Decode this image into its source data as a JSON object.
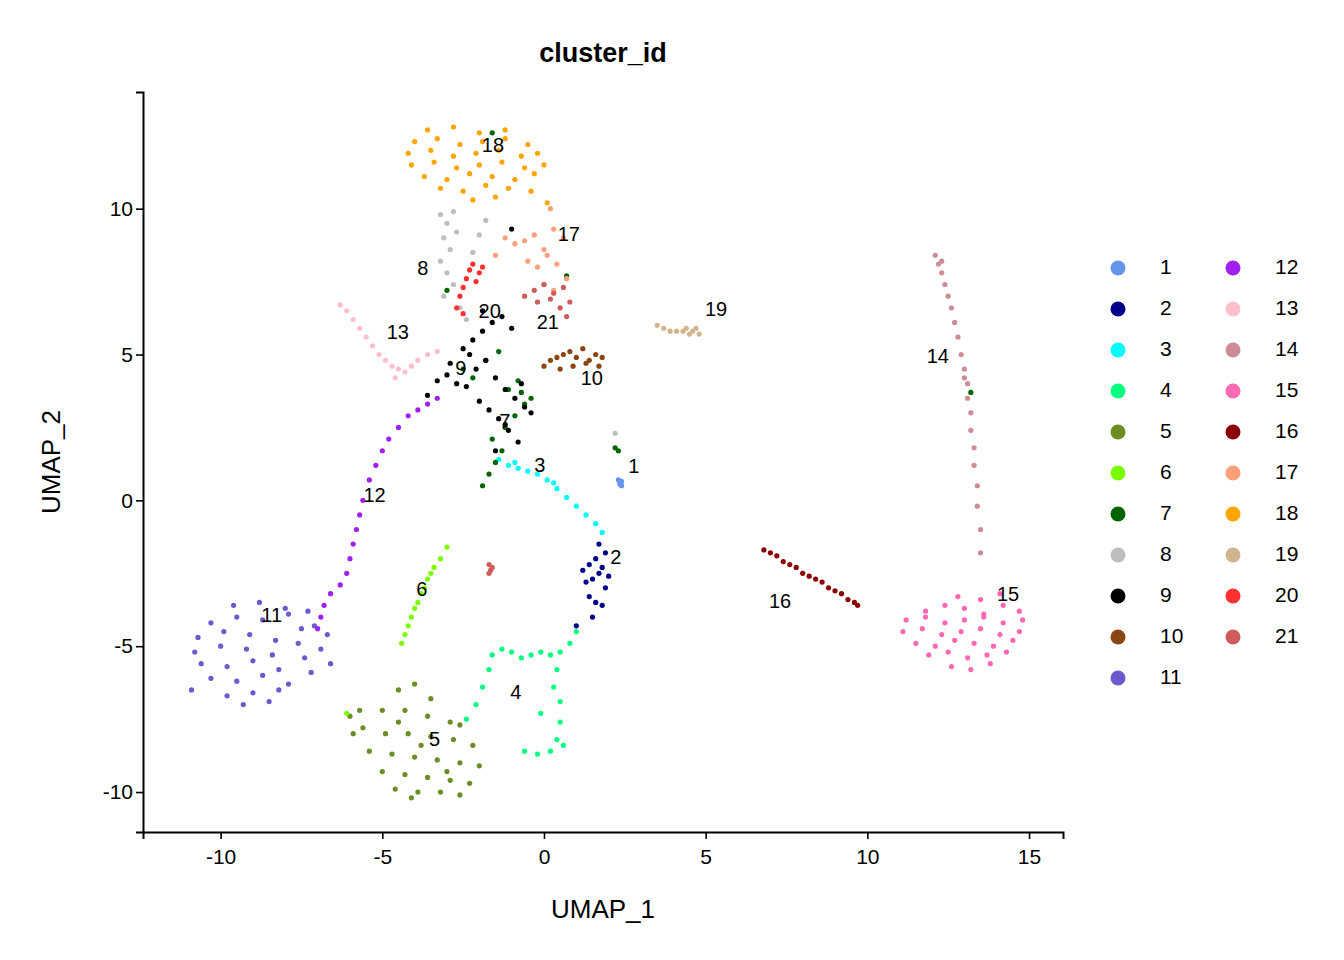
{
  "chart_data": {
    "type": "scatter",
    "title": "cluster_id",
    "x_label": "UMAP_1",
    "y_label": "UMAP_2",
    "xlim": [
      -12.4,
      16.05
    ],
    "ylim": [
      -11.37,
      14.0
    ],
    "xticks": [
      -10,
      -5,
      0,
      5,
      10,
      15
    ],
    "yticks": [
      -10,
      -5,
      0,
      5,
      10
    ],
    "grid": false,
    "legend": "right",
    "marker": "circle",
    "series": [
      {
        "name": "1",
        "color": "#6495ED",
        "x": [
          2.35,
          2.4,
          2.3,
          2.35,
          2.4
        ],
        "values": [
          0.6,
          0.5,
          0.7,
          0.55,
          0.65
        ]
      },
      {
        "name": "2",
        "color": "#00008B",
        "x": [
          1.2,
          1.4,
          1.6,
          1.8,
          2.0,
          1.3,
          1.5,
          1.7,
          1.9,
          1.4,
          1.6,
          1.8,
          1.7,
          1.9,
          1.5,
          1.0
        ],
        "values": [
          -2.4,
          -2.2,
          -2.0,
          -2.3,
          -2.6,
          -2.8,
          -2.7,
          -2.5,
          -3.0,
          -3.3,
          -3.5,
          -3.6,
          -1.5,
          -1.8,
          -4.0,
          -4.3
        ]
      },
      {
        "name": "3",
        "color": "#00FFFF",
        "x": [
          -1.4,
          -1.1,
          -0.8,
          -0.5,
          -0.2,
          0.1,
          0.4,
          0.7,
          1.0,
          1.3,
          1.6,
          1.8,
          -0.9,
          0.3
        ],
        "values": [
          1.4,
          1.2,
          1.1,
          1.0,
          0.9,
          0.7,
          0.4,
          0.1,
          -0.2,
          -0.5,
          -0.8,
          -1.1,
          1.3,
          0.6
        ]
      },
      {
        "name": "4",
        "color": "#00FF7F",
        "x": [
          1.0,
          0.8,
          0.5,
          0.2,
          -0.1,
          -0.4,
          -0.7,
          -1.0,
          -1.3,
          -1.6,
          -1.7,
          -1.9,
          -2.1,
          -2.4,
          0.4,
          0.3,
          0.5,
          0.5,
          0.4,
          0.2,
          -0.2,
          -0.6,
          -0.1,
          0.6
        ],
        "values": [
          -4.5,
          -4.9,
          -5.2,
          -5.3,
          -5.2,
          -5.3,
          -5.4,
          -5.2,
          -5.1,
          -5.3,
          -5.8,
          -6.4,
          -7.0,
          -7.5,
          -5.8,
          -6.4,
          -6.9,
          -7.6,
          -8.2,
          -8.6,
          -8.7,
          -8.6,
          -7.3,
          -8.4
        ]
      },
      {
        "name": "5",
        "color": "#6B8E23",
        "x": [
          -4.5,
          -4.0,
          -3.5,
          -5.0,
          -4.3,
          -3.6,
          -2.9,
          -5.6,
          -4.9,
          -4.2,
          -3.5,
          -2.8,
          -2.2,
          -5.4,
          -4.7,
          -4.0,
          -3.3,
          -2.6,
          -2.0,
          -5.0,
          -4.3,
          -3.6,
          -2.9,
          -2.3,
          -4.6,
          -3.9,
          -3.2,
          -2.6,
          -5.7,
          -5.9,
          -3.8,
          -4.5,
          -3.0,
          -4.1,
          -6.0,
          -2.6
        ],
        "values": [
          -6.5,
          -6.3,
          -6.8,
          -7.2,
          -7.2,
          -7.4,
          -7.6,
          -7.8,
          -8.0,
          -8.0,
          -8.1,
          -8.2,
          -8.4,
          -8.6,
          -8.7,
          -8.8,
          -8.9,
          -9.0,
          -9.1,
          -9.3,
          -9.4,
          -9.5,
          -9.6,
          -9.7,
          -9.9,
          -10.0,
          -10.0,
          -10.1,
          -7.2,
          -8.0,
          -8.4,
          -7.6,
          -9.3,
          -10.2,
          -7.4,
          -7.7
        ]
      },
      {
        "name": "6",
        "color": "#7CFC00",
        "x": [
          -4.4,
          -4.3,
          -4.2,
          -4.1,
          -4.0,
          -3.9,
          -3.8,
          -3.7,
          -3.6,
          -3.5,
          -3.4,
          -3.2,
          -3.0,
          -6.1
        ],
        "values": [
          -4.9,
          -4.6,
          -4.3,
          -4.0,
          -3.7,
          -3.5,
          -3.2,
          -3.0,
          -2.7,
          -2.5,
          -2.3,
          -2.0,
          -1.6,
          -7.3
        ]
      },
      {
        "name": "7",
        "color": "#006400",
        "x": [
          -1.9,
          -1.7,
          -1.5,
          -1.3,
          -1.6,
          -1.2,
          -0.9,
          -0.6,
          -0.4,
          -1.1,
          -0.8,
          -2.2,
          -2.5,
          -1.8,
          -1.4,
          -0.7,
          2.2,
          2.3,
          0.7,
          -3.0,
          -1.6,
          13.2
        ],
        "values": [
          0.5,
          0.9,
          1.3,
          1.7,
          2.1,
          2.5,
          2.9,
          3.3,
          3.5,
          3.8,
          4.1,
          4.2,
          4.5,
          4.8,
          5.1,
          3.7,
          1.8,
          1.7,
          7.7,
          7.2,
          12.6,
          3.7
        ]
      },
      {
        "name": "8",
        "color": "#BEBEBE",
        "x": [
          -3.2,
          -3.0,
          -2.8,
          -3.1,
          -2.9,
          -2.7,
          -3.2,
          -3.0,
          -2.8,
          -3.1,
          -2.6,
          -2.4,
          -2.2,
          -2.0,
          2.2,
          -1.8
        ],
        "values": [
          9.8,
          9.5,
          9.9,
          9.0,
          8.6,
          9.2,
          8.2,
          7.8,
          7.4,
          7.0,
          6.6,
          6.2,
          8.5,
          9.1,
          2.3,
          9.6
        ]
      },
      {
        "name": "9",
        "color": "#000000",
        "x": [
          -3.3,
          -3.0,
          -2.7,
          -2.4,
          -2.1,
          -1.8,
          -1.5,
          -1.2,
          -0.9,
          -0.6,
          -2.9,
          -2.5,
          -2.2,
          -1.9,
          -1.6,
          -1.3,
          -1.0,
          -0.7,
          -0.4,
          -2.0,
          -1.7,
          -1.4,
          -1.1,
          -0.8,
          -1.5,
          -1.2,
          -2.3,
          -1.9,
          -3.6,
          -1.0
        ],
        "values": [
          4.1,
          4.3,
          4.0,
          3.9,
          4.5,
          4.8,
          4.2,
          3.8,
          3.5,
          3.2,
          4.7,
          5.2,
          5.5,
          5.8,
          6.1,
          6.3,
          5.9,
          4.0,
          3.0,
          3.4,
          3.1,
          2.8,
          2.4,
          2.0,
          1.7,
          2.6,
          5.0,
          6.5,
          3.6,
          9.3
        ]
      },
      {
        "name": "10",
        "color": "#8B4513",
        "x": [
          0.0,
          0.2,
          0.4,
          0.6,
          0.8,
          1.0,
          1.2,
          1.4,
          1.6,
          1.8,
          0.5,
          0.9,
          1.3,
          1.7
        ],
        "values": [
          4.6,
          4.8,
          4.9,
          5.0,
          5.1,
          4.9,
          5.2,
          4.8,
          5.0,
          4.9,
          4.5,
          4.6,
          4.7,
          4.6
        ]
      },
      {
        "name": "11",
        "color": "#6A5ACD",
        "x": [
          -9.6,
          -8.8,
          -8.0,
          -7.3,
          -10.3,
          -9.5,
          -8.7,
          -7.9,
          -7.1,
          -10.7,
          -9.9,
          -9.1,
          -8.3,
          -7.5,
          -6.7,
          -10.8,
          -10.0,
          -9.2,
          -8.4,
          -7.6,
          -6.9,
          -10.6,
          -9.8,
          -9.0,
          -8.2,
          -7.4,
          -6.6,
          -10.3,
          -9.5,
          -8.7,
          -7.9,
          -7.2,
          -10.9,
          -9.8,
          -9.0,
          -8.2,
          -9.3,
          -8.5
        ],
        "values": [
          -3.6,
          -3.5,
          -3.7,
          -3.8,
          -4.2,
          -4.0,
          -4.1,
          -3.9,
          -4.3,
          -4.7,
          -4.5,
          -4.6,
          -4.8,
          -4.4,
          -4.6,
          -5.2,
          -5.0,
          -5.1,
          -5.3,
          -4.9,
          -5.1,
          -5.6,
          -5.7,
          -5.5,
          -5.8,
          -5.4,
          -5.6,
          -6.1,
          -6.2,
          -6.0,
          -6.3,
          -5.9,
          -6.5,
          -6.7,
          -6.6,
          -6.5,
          -7.0,
          -6.9
        ]
      },
      {
        "name": "12",
        "color": "#A020F0",
        "x": [
          -7.0,
          -6.9,
          -6.8,
          -6.6,
          -6.3,
          -6.1,
          -6.0,
          -5.9,
          -5.8,
          -5.7,
          -5.6,
          -5.4,
          -5.2,
          -5.0,
          -4.8,
          -4.5,
          -4.2,
          -3.9,
          -3.6,
          -3.3
        ],
        "values": [
          -4.4,
          -4.0,
          -3.6,
          -3.2,
          -2.9,
          -2.5,
          -2.0,
          -1.5,
          -1.0,
          -0.5,
          0.0,
          0.7,
          1.2,
          1.7,
          2.1,
          2.5,
          2.9,
          3.1,
          3.3,
          3.5
        ]
      },
      {
        "name": "13",
        "color": "#FFC0CB",
        "x": [
          -6.3,
          -6.1,
          -5.9,
          -5.7,
          -5.5,
          -5.3,
          -5.1,
          -4.9,
          -4.7,
          -4.5,
          -4.3,
          -4.1,
          -3.9,
          -3.6,
          -3.3,
          -4.6
        ],
        "values": [
          6.7,
          6.5,
          6.2,
          5.9,
          5.6,
          5.3,
          5.0,
          4.8,
          4.6,
          4.5,
          4.4,
          4.6,
          4.8,
          5.0,
          5.1,
          4.2
        ]
      },
      {
        "name": "14",
        "color": "#CD8C95",
        "x": [
          12.1,
          12.2,
          12.3,
          12.4,
          12.5,
          12.6,
          12.7,
          12.8,
          12.9,
          13.0,
          13.1,
          13.1,
          13.2,
          13.2,
          13.3,
          13.3,
          13.4,
          13.4,
          13.5,
          13.5,
          12.3,
          13.0
        ],
        "values": [
          8.4,
          8.1,
          7.8,
          7.4,
          7.0,
          6.6,
          6.1,
          5.6,
          5.0,
          4.5,
          4.0,
          3.5,
          3.0,
          2.4,
          1.8,
          1.2,
          0.5,
          -0.2,
          -1.0,
          -1.8,
          8.2,
          4.2
        ]
      },
      {
        "name": "15",
        "color": "#FF69B4",
        "x": [
          12.8,
          13.5,
          14.1,
          11.8,
          12.4,
          13.0,
          13.6,
          14.2,
          14.7,
          11.2,
          11.8,
          12.4,
          13.0,
          13.6,
          14.2,
          14.8,
          11.1,
          11.7,
          12.3,
          12.9,
          13.5,
          14.1,
          14.7,
          11.5,
          12.1,
          12.7,
          13.3,
          13.9,
          14.5,
          11.9,
          12.5,
          13.1,
          13.7,
          14.3,
          12.6,
          13.2,
          13.8
        ],
        "values": [
          -3.3,
          -3.4,
          -3.2,
          -3.8,
          -3.6,
          -3.7,
          -3.9,
          -3.6,
          -3.8,
          -4.1,
          -4.0,
          -4.2,
          -4.1,
          -4.0,
          -4.2,
          -4.1,
          -4.5,
          -4.4,
          -4.6,
          -4.5,
          -4.4,
          -4.6,
          -4.5,
          -4.9,
          -5.0,
          -4.8,
          -4.9,
          -5.0,
          -4.8,
          -5.3,
          -5.2,
          -5.4,
          -5.3,
          -5.2,
          -5.7,
          -5.8,
          -5.6
        ]
      },
      {
        "name": "16",
        "color": "#8B0000",
        "x": [
          6.8,
          7.0,
          7.2,
          7.4,
          7.6,
          7.8,
          8.0,
          8.2,
          8.4,
          8.6,
          8.8,
          9.0,
          9.2,
          9.4,
          9.6,
          9.7
        ],
        "values": [
          -1.7,
          -1.8,
          -1.9,
          -2.1,
          -2.2,
          -2.3,
          -2.5,
          -2.6,
          -2.7,
          -2.8,
          -3.0,
          -3.1,
          -3.2,
          -3.4,
          -3.5,
          -3.6
        ]
      },
      {
        "name": "17",
        "color": "#FFA07A",
        "x": [
          -1.2,
          -0.9,
          -0.6,
          -0.3,
          0.0,
          0.3,
          0.6,
          -0.5,
          -0.2,
          0.1,
          0.4,
          0.7,
          0.0,
          0.3,
          -1.5,
          0.2
        ],
        "values": [
          9.0,
          8.8,
          8.9,
          9.1,
          8.6,
          9.3,
          9.0,
          8.2,
          8.0,
          8.4,
          8.1,
          7.6,
          7.4,
          7.2,
          8.4,
          10.0
        ]
      },
      {
        "name": "18",
        "color": "#FFA500",
        "x": [
          -3.6,
          -2.8,
          -2.0,
          -1.2,
          -4.0,
          -3.3,
          -2.6,
          -1.9,
          -1.2,
          -0.5,
          -4.2,
          -3.5,
          -2.8,
          -2.1,
          -1.4,
          -0.7,
          -0.2,
          -4.1,
          -3.4,
          -2.7,
          -2.0,
          -1.3,
          -0.6,
          0.0,
          -3.7,
          -3.0,
          -2.3,
          -1.6,
          -0.9,
          -0.3,
          -3.2,
          -2.5,
          -1.8,
          -1.1,
          -0.4,
          -2.2,
          -1.5,
          0.1
        ],
        "values": [
          12.7,
          12.8,
          12.6,
          12.7,
          12.3,
          12.4,
          12.2,
          12.3,
          12.4,
          12.2,
          11.9,
          12.0,
          11.8,
          11.9,
          12.0,
          11.8,
          11.9,
          11.5,
          11.6,
          11.4,
          11.5,
          11.6,
          11.4,
          11.5,
          11.1,
          11.0,
          11.2,
          11.1,
          11.0,
          11.2,
          10.7,
          10.6,
          10.8,
          10.7,
          10.6,
          10.3,
          10.4,
          10.2
        ]
      },
      {
        "name": "19",
        "color": "#D2B48C",
        "x": [
          3.5,
          3.7,
          3.9,
          4.1,
          4.3,
          4.4,
          4.5,
          4.6,
          4.7,
          4.8
        ],
        "values": [
          6.0,
          5.9,
          5.8,
          5.8,
          5.8,
          5.9,
          5.7,
          5.8,
          5.9,
          5.7
        ]
      },
      {
        "name": "20",
        "color": "#FF3030",
        "x": [
          -2.7,
          -2.6,
          -2.5,
          -2.4,
          -2.3,
          -2.2,
          -2.1,
          -2.0,
          -1.9,
          -2.5
        ],
        "values": [
          6.6,
          7.0,
          7.3,
          7.6,
          7.9,
          8.1,
          7.5,
          7.8,
          8.0,
          6.4
        ]
      },
      {
        "name": "21",
        "color": "#CD5C5C",
        "x": [
          -0.6,
          -0.3,
          0.0,
          0.3,
          0.6,
          0.8,
          0.2,
          0.5,
          -0.2,
          0.7,
          -1.7,
          -1.65,
          -1.6,
          -1.7
        ],
        "values": [
          7.0,
          7.2,
          7.4,
          7.1,
          7.3,
          6.8,
          6.9,
          6.6,
          6.8,
          6.3,
          -2.2,
          -2.4,
          -2.3,
          -2.5
        ]
      }
    ],
    "annotations": [
      {
        "text": "1",
        "x": 2.78,
        "y": 1.11
      },
      {
        "text": "2",
        "x": 2.22,
        "y": -2.01
      },
      {
        "text": "3",
        "x": -0.13,
        "y": 1.15
      },
      {
        "text": "4",
        "x": -0.87,
        "y": -6.64
      },
      {
        "text": "5",
        "x": -3.38,
        "y": -8.25
      },
      {
        "text": "6",
        "x": -3.78,
        "y": -3.1
      },
      {
        "text": "7",
        "x": -1.21,
        "y": 2.66
      },
      {
        "text": "8",
        "x": -3.75,
        "y": 7.9
      },
      {
        "text": "9",
        "x": -2.57,
        "y": 4.48
      },
      {
        "text": "10",
        "x": 1.48,
        "y": 4.13
      },
      {
        "text": "11",
        "x": -8.42,
        "y": -4.0
      },
      {
        "text": "12",
        "x": -5.24,
        "y": 0.12
      },
      {
        "text": "13",
        "x": -4.52,
        "y": 5.71
      },
      {
        "text": "14",
        "x": 12.18,
        "y": 4.89
      },
      {
        "text": "15",
        "x": 14.35,
        "y": -3.28
      },
      {
        "text": "16",
        "x": 7.3,
        "y": -3.52
      },
      {
        "text": "17",
        "x": 0.77,
        "y": 9.07
      },
      {
        "text": "18",
        "x": -1.58,
        "y": 12.13
      },
      {
        "text": "19",
        "x": 5.32,
        "y": 6.5
      },
      {
        "text": "20",
        "x": -1.68,
        "y": 6.43
      },
      {
        "text": "21",
        "x": 0.12,
        "y": 6.05
      }
    ]
  }
}
